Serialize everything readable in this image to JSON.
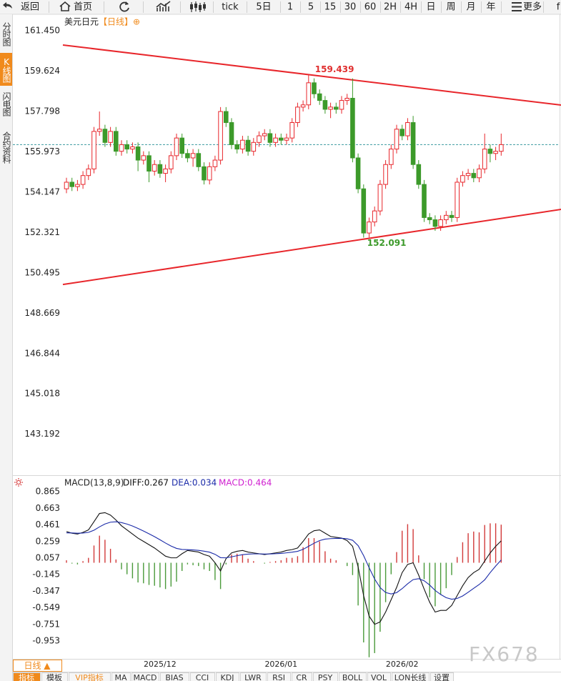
{
  "ui": {
    "toolbar": [
      "返回",
      "首页",
      "tick",
      "5日",
      "1",
      "5",
      "15",
      "30",
      "60",
      "2H",
      "4H",
      "日",
      "周",
      "月",
      "年",
      "更多",
      "f"
    ],
    "sidebar": [
      "分时图",
      "K线图",
      "闪电图",
      "合约资料"
    ],
    "period_button": "日线 ▲",
    "bottom_tabs": [
      "指标",
      "模板",
      "VIP指标",
      "MA",
      "MACD",
      "BIAS",
      "CCI",
      "KDJ",
      "LWR",
      "RSI",
      "CR",
      "PSY",
      "BOLL",
      "VOL",
      "LON长线",
      "设置"
    ],
    "watermark": "FX678"
  },
  "chart_data": [
    {
      "type": "candlestick",
      "title": "美元日元",
      "period": "【日线】",
      "title_icon": "⊕",
      "up_color": "#e8262b",
      "down_color": "#3c9a2a",
      "last_price_color": "#3a9aa0",
      "grid": false,
      "ylim": [
        141.5,
        162.2
      ],
      "yticks": [
        {
          "value": 161.45,
          "label": "161.450"
        },
        159.624,
        157.798,
        155.973,
        154.147,
        152.321,
        150.495,
        148.669,
        146.844,
        145.018,
        143.192
      ],
      "open": [
        154.3,
        154.6,
        154.4,
        154.5,
        154.9,
        155.2,
        156.9,
        157.0,
        156.4,
        156.9,
        156.0,
        156.3,
        156.1,
        156.2,
        155.6,
        155.8,
        155.1,
        155.4,
        155.0,
        155.2,
        155.8,
        156.6,
        155.9,
        155.7,
        155.9,
        155.3,
        154.7,
        155.3,
        155.6,
        157.8,
        157.3,
        156.3,
        156.1,
        156.5,
        156.0,
        156.4,
        156.7,
        156.8,
        156.4,
        156.6,
        156.5,
        156.6,
        157.3,
        158.0,
        158.1,
        159.1,
        158.6,
        158.3,
        157.9,
        158.0,
        157.9,
        158.3,
        158.4,
        155.7,
        154.3,
        152.3,
        152.8,
        153.3,
        154.5,
        155.4,
        156.1,
        157.0,
        156.7,
        157.3,
        155.4,
        154.5,
        153.0,
        152.9,
        152.6,
        152.9,
        153.1,
        153.0,
        154.6,
        154.9,
        155.0,
        154.8,
        155.2,
        156.1,
        155.9,
        156.0
      ],
      "high": [
        154.8,
        154.8,
        154.7,
        155.1,
        155.4,
        157.1,
        157.8,
        157.2,
        157.1,
        157.1,
        156.5,
        156.5,
        156.4,
        156.4,
        156.0,
        156.0,
        155.6,
        155.6,
        155.4,
        156.0,
        156.8,
        156.8,
        156.1,
        156.1,
        156.1,
        155.5,
        155.5,
        155.8,
        158.0,
        158.0,
        157.5,
        156.5,
        156.7,
        156.7,
        156.6,
        156.9,
        157.0,
        157.0,
        156.8,
        156.8,
        156.8,
        157.5,
        158.2,
        158.3,
        159.439,
        159.3,
        158.8,
        158.5,
        158.2,
        158.2,
        158.5,
        158.6,
        159.3,
        155.9,
        154.5,
        153.0,
        153.5,
        154.7,
        155.6,
        156.3,
        157.2,
        157.2,
        157.5,
        157.6,
        155.6,
        154.7,
        153.2,
        153.1,
        153.1,
        153.3,
        153.3,
        154.8,
        155.1,
        155.2,
        155.2,
        155.4,
        156.8,
        156.3,
        156.2,
        156.8
      ],
      "low": [
        154.1,
        154.2,
        154.2,
        154.3,
        154.7,
        155.0,
        156.7,
        156.2,
        156.2,
        155.8,
        155.8,
        155.9,
        155.9,
        155.1,
        155.4,
        154.6,
        154.9,
        154.8,
        154.6,
        155.0,
        155.6,
        155.7,
        155.5,
        155.3,
        155.1,
        154.5,
        154.5,
        155.1,
        155.4,
        157.1,
        156.1,
        155.9,
        155.9,
        155.8,
        155.8,
        156.2,
        156.5,
        156.2,
        156.2,
        156.3,
        156.3,
        156.4,
        157.1,
        157.8,
        157.9,
        158.4,
        158.1,
        157.7,
        157.5,
        157.7,
        157.7,
        158.1,
        155.5,
        154.1,
        152.091,
        152.1,
        152.6,
        153.1,
        154.3,
        155.2,
        155.9,
        156.5,
        156.5,
        155.2,
        154.3,
        152.8,
        152.7,
        152.4,
        152.4,
        152.7,
        152.8,
        152.8,
        154.4,
        154.7,
        154.6,
        154.6,
        155.0,
        155.5,
        155.6,
        155.8
      ],
      "close": [
        154.6,
        154.4,
        154.5,
        154.9,
        155.2,
        156.9,
        157.0,
        156.4,
        156.9,
        156.0,
        156.3,
        156.1,
        156.2,
        155.6,
        155.8,
        155.1,
        155.4,
        155.0,
        155.2,
        155.8,
        156.6,
        155.9,
        155.7,
        155.9,
        155.3,
        154.7,
        155.3,
        155.6,
        157.8,
        157.3,
        156.3,
        156.1,
        156.5,
        156.0,
        156.4,
        156.7,
        156.8,
        156.4,
        156.6,
        156.5,
        156.6,
        157.3,
        158.0,
        158.1,
        159.1,
        158.6,
        158.3,
        157.9,
        158.0,
        157.9,
        158.3,
        158.4,
        155.7,
        154.3,
        152.3,
        152.8,
        153.3,
        154.5,
        155.4,
        156.1,
        157.0,
        156.7,
        157.3,
        155.4,
        154.5,
        153.0,
        152.9,
        152.6,
        152.9,
        153.1,
        153.0,
        154.6,
        154.9,
        155.0,
        154.8,
        155.2,
        156.1,
        155.9,
        156.0,
        156.3
      ],
      "trend_lines": [
        {
          "color": "#e8262b",
          "x": [
            -0.65,
            89.9
          ],
          "y": [
            160.81,
            158.09
          ]
        },
        {
          "color": "#e8262b",
          "x": [
            -0.65,
            89.9
          ],
          "y": [
            149.97,
            153.37
          ]
        }
      ],
      "high_label_color": "#e03030",
      "low_label_color": "#3c9a2a"
    },
    {
      "type": "macd",
      "title": "MACD(13,8,9)",
      "categories": [
        null,
        null,
        null,
        null,
        null,
        null,
        null,
        null,
        null,
        null,
        null,
        null,
        null,
        null,
        null,
        null,
        null,
        "2025/12",
        null,
        null,
        null,
        null,
        null,
        null,
        null,
        null,
        null,
        null,
        null,
        null,
        null,
        null,
        null,
        null,
        null,
        null,
        null,
        null,
        null,
        "2026/01",
        null,
        null,
        null,
        null,
        null,
        null,
        null,
        null,
        null,
        null,
        null,
        null,
        null,
        null,
        null,
        null,
        null,
        null,
        null,
        null,
        null,
        "2026/02",
        null,
        null,
        null,
        null,
        null,
        null,
        null,
        null,
        null,
        null,
        null,
        null,
        null,
        null,
        null,
        null,
        null,
        null
      ],
      "ylim": [
        -1.17,
        1.04
      ],
      "yticks": [
        0.865,
        0.663,
        0.461,
        0.259,
        0.057,
        -0.145,
        -0.347,
        -0.549,
        -0.751,
        -0.953
      ],
      "series": [
        {
          "name": "DIFF:0.267",
          "color": "#111111",
          "values": [
            0.38,
            0.36,
            0.35,
            0.37,
            0.4,
            0.5,
            0.6,
            0.61,
            0.58,
            0.52,
            0.45,
            0.4,
            0.35,
            0.3,
            0.26,
            0.22,
            0.18,
            0.13,
            0.08,
            0.06,
            0.06,
            0.11,
            0.15,
            0.14,
            0.13,
            0.1,
            0.08,
            0.0,
            -0.1,
            0.05,
            0.12,
            0.14,
            0.15,
            0.13,
            0.12,
            0.11,
            0.1,
            0.11,
            0.12,
            0.13,
            0.15,
            0.16,
            0.18,
            0.26,
            0.35,
            0.39,
            0.4,
            0.36,
            0.32,
            0.31,
            0.3,
            0.27,
            0.2,
            -0.05,
            -0.4,
            -0.65,
            -0.75,
            -0.72,
            -0.6,
            -0.45,
            -0.3,
            -0.12,
            -0.02,
            0.0,
            -0.15,
            -0.32,
            -0.48,
            -0.6,
            -0.58,
            -0.58,
            -0.52,
            -0.4,
            -0.28,
            -0.18,
            -0.12,
            -0.08,
            0.02,
            0.12,
            0.2,
            0.267
          ]
        },
        {
          "name": "DEA:0.034",
          "color": "#1a2aa8",
          "values": [
            0.364,
            0.363,
            0.36,
            0.362,
            0.37,
            0.396,
            0.437,
            0.472,
            0.494,
            0.499,
            0.489,
            0.471,
            0.447,
            0.418,
            0.386,
            0.353,
            0.318,
            0.28,
            0.24,
            0.204,
            0.175,
            0.162,
            0.16,
            0.156,
            0.151,
            0.141,
            0.129,
            0.103,
            0.062,
            0.06,
            0.072,
            0.086,
            0.099,
            0.105,
            0.108,
            0.108,
            0.106,
            0.107,
            0.11,
            0.114,
            0.121,
            0.129,
            0.139,
            0.163,
            0.2,
            0.238,
            0.27,
            0.288,
            0.294,
            0.297,
            0.298,
            0.292,
            0.274,
            0.209,
            0.087,
            -0.06,
            -0.198,
            -0.302,
            -0.362,
            -0.38,
            -0.364,
            -0.315,
            -0.256,
            -0.205,
            -0.194,
            -0.219,
            -0.271,
            -0.337,
            -0.386,
            -0.425,
            -0.444,
            -0.435,
            -0.404,
            -0.359,
            -0.311,
            -0.265,
            -0.208,
            -0.12,
            -0.04,
            0.034
          ]
        },
        {
          "name": "MACD:0.464",
          "color": "#d020d0",
          "up_color": "#d23a3a",
          "down_color": "#4a9a3a",
          "values": [
            0.03,
            -0.01,
            -0.02,
            0.02,
            0.06,
            0.21,
            0.33,
            0.28,
            0.17,
            0.04,
            -0.08,
            -0.14,
            -0.19,
            -0.24,
            -0.25,
            -0.27,
            -0.28,
            -0.3,
            -0.32,
            -0.29,
            -0.23,
            -0.1,
            -0.02,
            -0.03,
            -0.04,
            -0.08,
            -0.1,
            -0.21,
            -0.32,
            -0.02,
            0.1,
            0.11,
            0.1,
            0.05,
            0.02,
            0.0,
            -0.01,
            0.01,
            0.02,
            0.03,
            0.06,
            0.06,
            0.08,
            0.19,
            0.3,
            0.3,
            0.26,
            0.14,
            0.05,
            0.03,
            0.0,
            -0.04,
            -0.15,
            -0.52,
            -0.97,
            -1.15,
            -1.1,
            -0.84,
            -0.48,
            -0.14,
            0.13,
            0.39,
            0.47,
            0.41,
            0.09,
            -0.2,
            -0.42,
            -0.53,
            -0.39,
            -0.31,
            -0.15,
            0.07,
            0.25,
            0.36,
            0.38,
            0.37,
            0.46,
            0.48,
            0.48,
            0.464
          ]
        }
      ]
    }
  ]
}
